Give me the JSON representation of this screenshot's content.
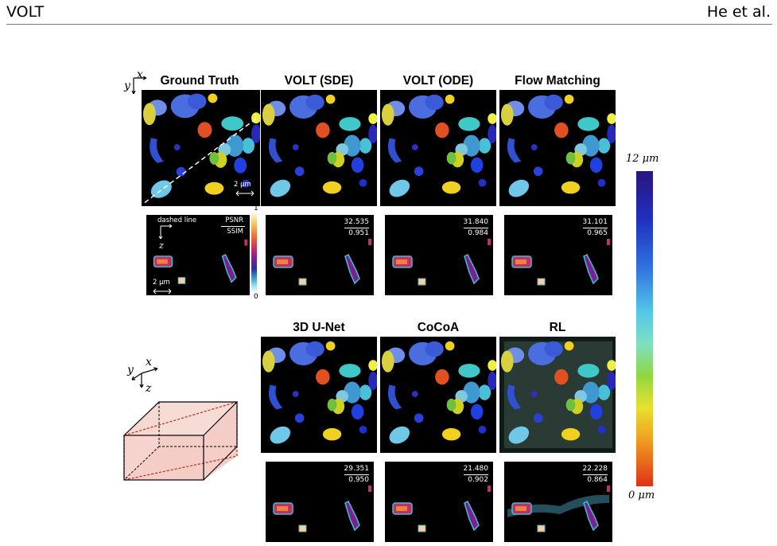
{
  "header": {
    "left": "VOLT",
    "right": "He et al."
  },
  "columns": {
    "gt": "Ground Truth",
    "sde": "VOLT (SDE)",
    "ode": "VOLT (ODE)",
    "fm": "Flow Matching",
    "unet": "3D U-Net",
    "cocoa": "CoCoA",
    "rl": "RL"
  },
  "axes": {
    "x": "x",
    "y": "y",
    "z": "z"
  },
  "gt_panel": {
    "scale": "2 μm",
    "dashed_line": "dashed line",
    "psnr": "PSNR",
    "ssim": "SSIM",
    "xz_scale": "2 μm"
  },
  "metrics": {
    "sde": {
      "psnr": "32.535",
      "ssim": "0.951"
    },
    "ode": {
      "psnr": "31.840",
      "ssim": "0.984"
    },
    "fm": {
      "psnr": "31.101",
      "ssim": "0.965"
    },
    "unet": {
      "psnr": "29.351",
      "ssim": "0.950"
    },
    "cocoa": {
      "psnr": "21.480",
      "ssim": "0.902"
    },
    "rl": {
      "psnr": "22.228",
      "ssim": "0.864"
    }
  },
  "intensity_bar": {
    "max": "1",
    "min": "0"
  },
  "depth_bar": {
    "max": "12 μm",
    "min": "0 μm"
  },
  "colors": {
    "depth_top": "#2a1580",
    "depth_bottom": "#e03018",
    "slab": "#f2c4bc",
    "slab_edge": "#c0281c"
  }
}
